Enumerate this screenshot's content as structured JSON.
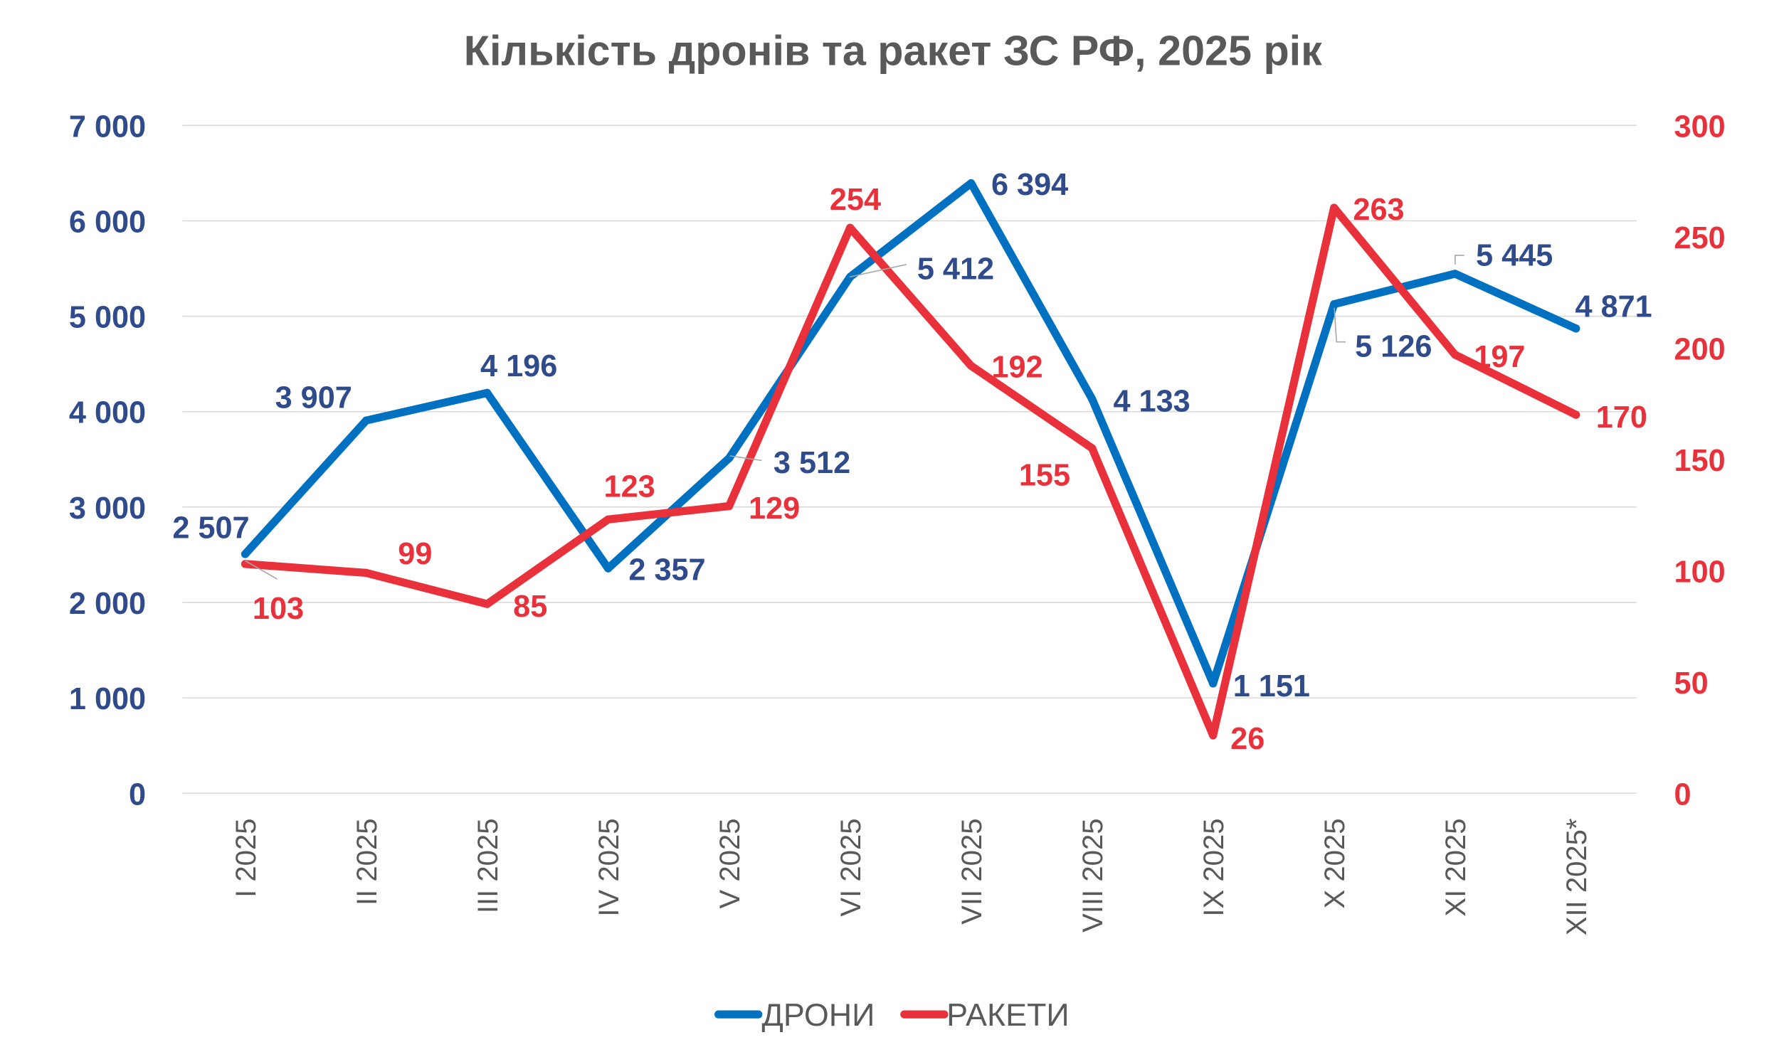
{
  "chart_data": {
    "type": "line",
    "title": "Кількість дронів та ракет ЗС РФ, 2025 рік",
    "categories": [
      "I 2025",
      "II 2025",
      "III 2025",
      "IV 2025",
      "V 2025",
      "VI 2025",
      "VII 2025",
      "VIII 2025",
      "IX 2025",
      "X 2025",
      "XI 2025",
      "XII 2025*"
    ],
    "series": [
      {
        "name": "ДРОНИ",
        "axis": "left",
        "color": "#0070C0",
        "label_color": "#2F4B8C",
        "values": [
          2507,
          3907,
          4196,
          2357,
          3512,
          5412,
          6394,
          4133,
          1151,
          5126,
          5445,
          4871
        ],
        "labels": [
          "2 507",
          "3 907",
          "4 196",
          "2 357",
          "3 512",
          "5 412",
          "6 394",
          "4 133",
          "1 151",
          "5 126",
          "5 445",
          "4 871"
        ]
      },
      {
        "name": "РАКЕТИ",
        "axis": "right",
        "color": "#E8313A",
        "label_color": "#E8313A",
        "values": [
          103,
          99,
          85,
          123,
          129,
          254,
          192,
          155,
          26,
          263,
          197,
          170
        ],
        "labels": [
          "103",
          "99",
          "85",
          "123",
          "129",
          "254",
          "192",
          "155",
          "26",
          "263",
          "197",
          "170"
        ]
      }
    ],
    "y_left": {
      "range": [
        0,
        7000
      ],
      "ticks": [
        "0",
        "1 000",
        "2 000",
        "3 000",
        "4 000",
        "5 000",
        "6 000",
        "7 000"
      ]
    },
    "y_right": {
      "range": [
        0,
        300
      ],
      "ticks": [
        "0",
        "50",
        "100",
        "150",
        "200",
        "250",
        "300"
      ]
    },
    "grid": true,
    "legend": "bottom-center"
  }
}
